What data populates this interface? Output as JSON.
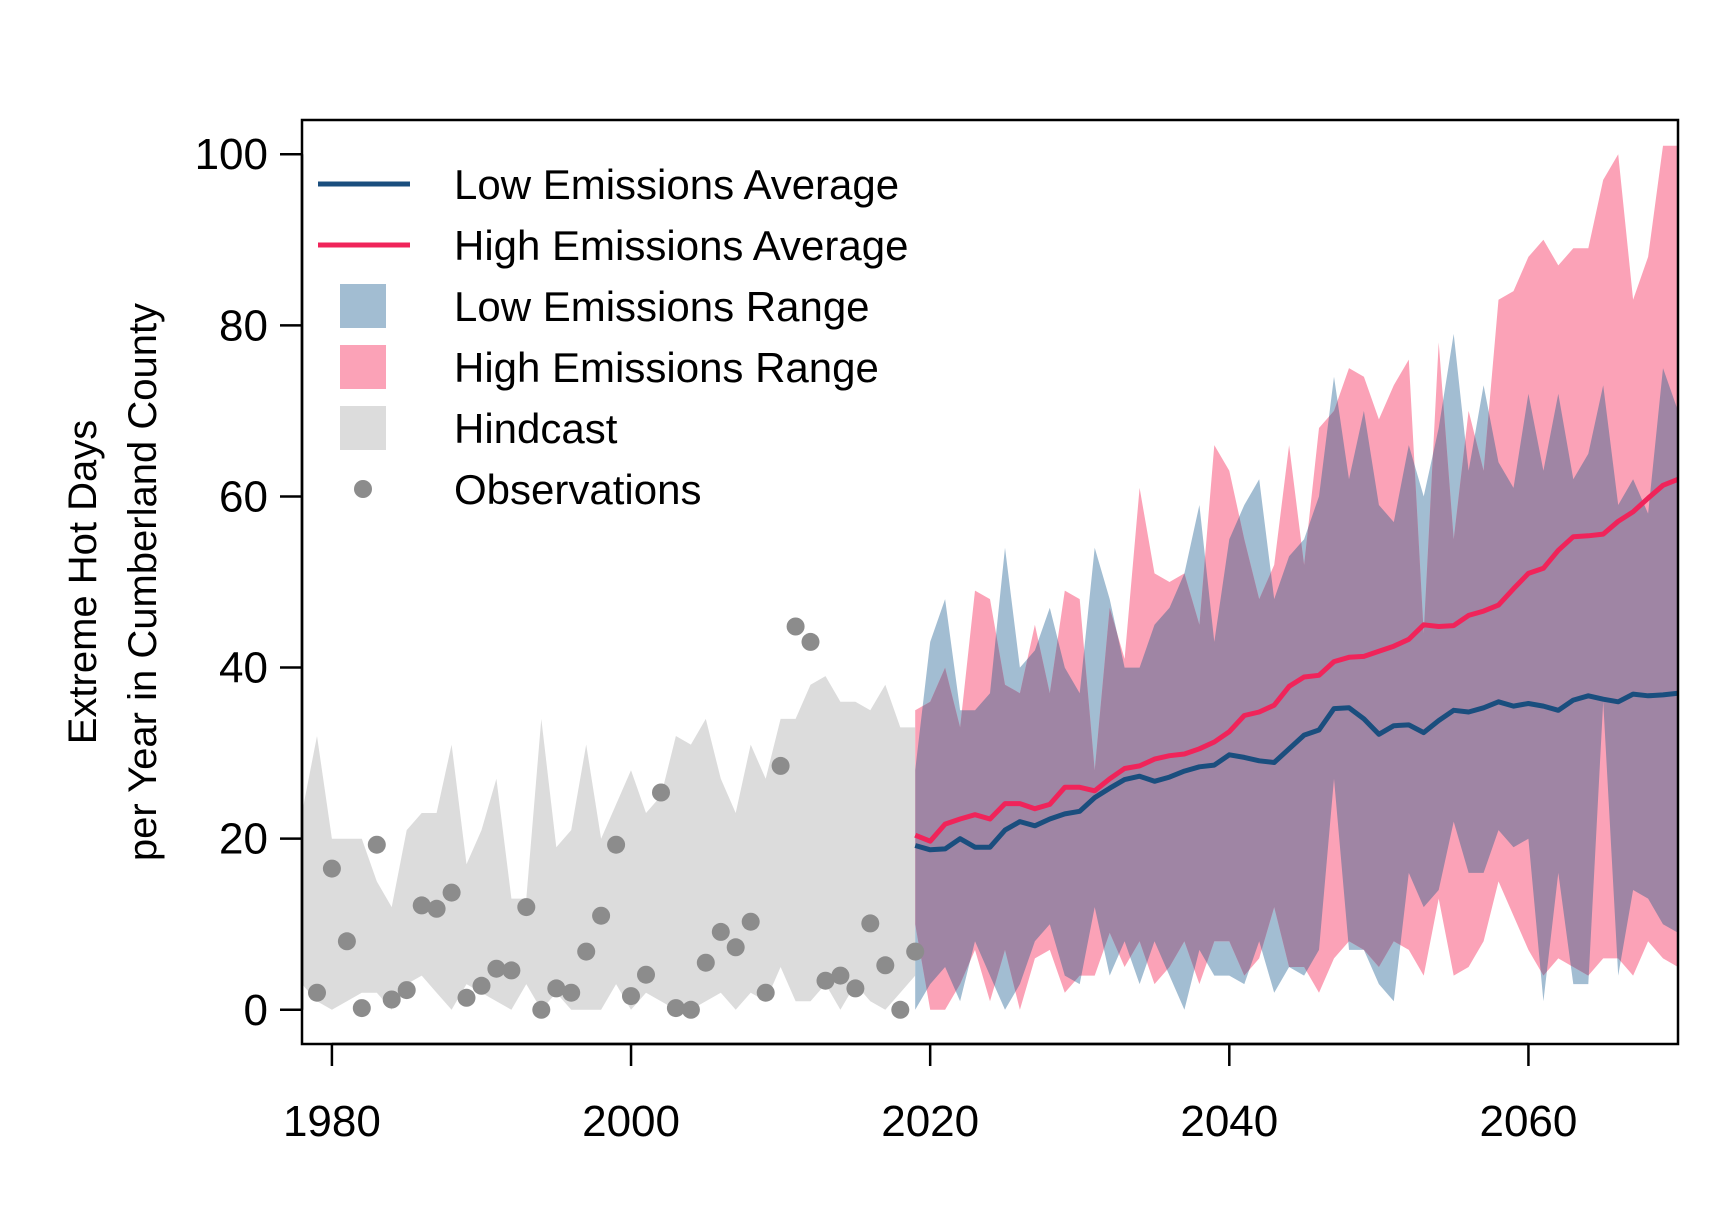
{
  "colors": {
    "low": "#1a4e7e",
    "high": "#f0245a",
    "low_range": "#a2bdd2",
    "high_range": "#fba2b7",
    "overlap": "#9f85a4",
    "hindcast": "#dcdcdc",
    "observations": "#8c8c8c"
  },
  "chart_data": {
    "type": "line",
    "xlabel": "",
    "ylabel_lines": [
      "Extreme Hot Days",
      "per Year in Cumberland County"
    ],
    "xlim": [
      1978,
      2070
    ],
    "ylim": [
      -4,
      104
    ],
    "xticks": [
      1980,
      2000,
      2020,
      2040,
      2060
    ],
    "yticks": [
      0,
      20,
      40,
      60,
      80,
      100
    ],
    "grid": false,
    "legend_position": "top-left",
    "legend": [
      {
        "label": "Low Emissions Average",
        "symbol": "line",
        "color": "#1a4e7e"
      },
      {
        "label": "High Emissions Average",
        "symbol": "line",
        "color": "#f0245a"
      },
      {
        "label": "Low Emissions Range",
        "symbol": "box",
        "color": "#a2bdd2"
      },
      {
        "label": "High Emissions Range",
        "symbol": "box",
        "color": "#fba2b7"
      },
      {
        "label": "Hindcast",
        "symbol": "box",
        "color": "#dcdcdc"
      },
      {
        "label": "Observations",
        "symbol": "point",
        "color": "#8c8c8c"
      }
    ],
    "hindcast_range": {
      "x": [
        1978,
        1979,
        1980,
        1981,
        1982,
        1983,
        1984,
        1985,
        1986,
        1987,
        1988,
        1989,
        1990,
        1991,
        1992,
        1993,
        1994,
        1995,
        1996,
        1997,
        1998,
        1999,
        2000,
        2001,
        2002,
        2003,
        2004,
        2005,
        2006,
        2007,
        2008,
        2009,
        2010,
        2011,
        2012,
        2013,
        2014,
        2015,
        2016,
        2017,
        2018,
        2019
      ],
      "upper": [
        23,
        32,
        20,
        20,
        20,
        15,
        12,
        21,
        23,
        23,
        31,
        17,
        21,
        27,
        13,
        13,
        34,
        19,
        21,
        31,
        20,
        24,
        28,
        23,
        25,
        32,
        31,
        34,
        27,
        23,
        31,
        27,
        34,
        34,
        38,
        39,
        36,
        36,
        35,
        38,
        33,
        33
      ],
      "lower": [
        3,
        1,
        0,
        1,
        2,
        2,
        0,
        3,
        4,
        2,
        0,
        3,
        2,
        1,
        0,
        3,
        0,
        2,
        0,
        0,
        0,
        3,
        0,
        2,
        1,
        0,
        0,
        1,
        2,
        0,
        2,
        1,
        5,
        1,
        1,
        3,
        0,
        3,
        1,
        0,
        2,
        4
      ]
    },
    "observations": {
      "x": [
        1979,
        1980,
        1981,
        1982,
        1983,
        1984,
        1985,
        1986,
        1987,
        1988,
        1989,
        1990,
        1991,
        1992,
        1993,
        1994,
        1995,
        1996,
        1997,
        1998,
        1999,
        2000,
        2001,
        2002,
        2003,
        2004,
        2005,
        2006,
        2007,
        2008,
        2009,
        2010,
        2011,
        2012,
        2013,
        2014,
        2015,
        2016,
        2017,
        2018,
        2019
      ],
      "y": [
        2,
        16.5,
        8,
        0.2,
        19.3,
        1.2,
        2.3,
        12.2,
        11.8,
        13.7,
        1.4,
        2.8,
        4.8,
        4.6,
        12,
        0,
        2.5,
        2,
        6.8,
        11,
        19.3,
        1.6,
        4.1,
        25.4,
        0.2,
        0,
        5.5,
        9.1,
        7.3,
        10.3,
        2,
        28.5,
        44.8,
        43,
        3.4,
        4,
        2.5,
        10.1,
        5.2,
        0,
        6.8
      ]
    },
    "low_emissions_range": {
      "x": [
        2019,
        2020,
        2021,
        2022,
        2023,
        2024,
        2025,
        2026,
        2027,
        2028,
        2029,
        2030,
        2031,
        2032,
        2033,
        2034,
        2035,
        2036,
        2037,
        2038,
        2039,
        2040,
        2041,
        2042,
        2043,
        2044,
        2045,
        2046,
        2047,
        2048,
        2049,
        2050,
        2051,
        2052,
        2053,
        2054,
        2055,
        2056,
        2057,
        2058,
        2059,
        2060,
        2061,
        2062,
        2063,
        2064,
        2065,
        2066,
        2067,
        2068,
        2069,
        2070
      ],
      "upper": [
        28,
        43,
        48,
        35,
        35,
        37,
        54,
        40,
        42,
        47,
        40,
        37,
        54,
        48,
        40,
        40,
        45,
        47,
        51,
        59,
        43,
        55,
        59,
        62,
        48,
        53,
        55,
        60,
        74,
        62,
        70,
        59,
        57,
        66,
        60,
        68,
        79,
        63,
        73,
        64,
        61,
        72,
        63,
        72,
        62,
        65,
        73,
        59,
        62,
        58,
        75,
        70
      ],
      "lower": [
        0,
        3,
        5,
        1,
        8,
        4,
        0,
        3,
        8,
        10,
        4,
        3,
        12,
        4,
        8,
        3,
        8,
        4,
        0,
        7,
        4,
        4,
        3,
        8,
        2,
        5,
        4,
        7,
        27,
        7,
        7,
        3,
        1,
        16,
        12,
        14,
        22,
        16,
        16,
        21,
        19,
        20,
        1,
        16,
        3,
        3,
        36,
        4,
        14,
        13,
        10,
        9
      ]
    },
    "high_emissions_range": {
      "x": [
        2019,
        2020,
        2021,
        2022,
        2023,
        2024,
        2025,
        2026,
        2027,
        2028,
        2029,
        2030,
        2031,
        2032,
        2033,
        2034,
        2035,
        2036,
        2037,
        2038,
        2039,
        2040,
        2041,
        2042,
        2043,
        2044,
        2045,
        2046,
        2047,
        2048,
        2049,
        2050,
        2051,
        2052,
        2053,
        2054,
        2055,
        2056,
        2057,
        2058,
        2059,
        2060,
        2061,
        2062,
        2063,
        2064,
        2065,
        2066,
        2067,
        2068,
        2069,
        2070
      ],
      "upper": [
        35,
        36,
        40,
        33,
        49,
        48,
        38,
        37,
        45,
        37,
        49,
        48,
        28,
        47,
        41,
        61,
        51,
        50,
        51,
        45,
        66,
        63,
        55,
        48,
        52,
        66,
        52,
        68,
        70,
        75,
        74,
        69,
        73,
        76,
        44,
        78,
        55,
        70,
        63,
        83,
        84,
        88,
        90,
        87,
        89,
        89,
        97,
        100,
        83,
        88,
        101,
        101
      ],
      "lower": [
        10,
        0,
        0,
        3,
        7,
        1,
        7,
        0,
        6,
        7,
        2,
        4,
        4,
        9,
        5,
        8,
        3,
        5,
        8,
        3,
        8,
        8,
        4,
        6,
        12,
        5,
        5,
        2,
        6,
        8,
        7,
        5,
        8,
        7,
        4,
        13,
        4,
        5,
        8,
        15,
        11,
        7,
        4,
        6,
        5,
        4,
        6,
        6,
        4,
        8,
        6,
        5
      ]
    },
    "series": [
      {
        "name": "Low Emissions Average",
        "color": "#1a4e7e",
        "x": [
          2019,
          2020,
          2021,
          2022,
          2023,
          2024,
          2025,
          2026,
          2027,
          2028,
          2029,
          2030,
          2031,
          2032,
          2033,
          2034,
          2035,
          2036,
          2037,
          2038,
          2039,
          2040,
          2041,
          2042,
          2043,
          2044,
          2045,
          2046,
          2047,
          2048,
          2049,
          2050,
          2051,
          2052,
          2053,
          2054,
          2055,
          2056,
          2057,
          2058,
          2059,
          2060,
          2061,
          2062,
          2063,
          2064,
          2065,
          2066,
          2067,
          2068,
          2069,
          2070
        ],
        "y": [
          19.2,
          18.7,
          18.8,
          20,
          19,
          19,
          21,
          22,
          21.5,
          22.3,
          22.9,
          23.2,
          24.8,
          25.9,
          26.9,
          27.3,
          26.7,
          27.2,
          27.9,
          28.4,
          28.6,
          29.8,
          29.5,
          29.1,
          28.9,
          30.5,
          32.1,
          32.7,
          35.2,
          35.3,
          34,
          32.2,
          33.2,
          33.3,
          32.4,
          33.8,
          35,
          34.8,
          35.3,
          36,
          35.5,
          35.8,
          35.5,
          35,
          36.2,
          36.7,
          36.3,
          36,
          36.9,
          36.7,
          36.8,
          37
        ]
      },
      {
        "name": "High Emissions Average",
        "color": "#f0245a",
        "x": [
          2019,
          2020,
          2021,
          2022,
          2023,
          2024,
          2025,
          2026,
          2027,
          2028,
          2029,
          2030,
          2031,
          2032,
          2033,
          2034,
          2035,
          2036,
          2037,
          2038,
          2039,
          2040,
          2041,
          2042,
          2043,
          2044,
          2045,
          2046,
          2047,
          2048,
          2049,
          2050,
          2051,
          2052,
          2053,
          2054,
          2055,
          2056,
          2057,
          2058,
          2059,
          2060,
          2061,
          2062,
          2063,
          2064,
          2065,
          2066,
          2067,
          2068,
          2069,
          2070
        ],
        "y": [
          20.4,
          19.7,
          21.7,
          22.3,
          22.8,
          22.3,
          24.1,
          24.1,
          23.5,
          24,
          26,
          26,
          25.6,
          27,
          28.2,
          28.5,
          29.3,
          29.7,
          29.9,
          30.5,
          31.3,
          32.5,
          34.4,
          34.8,
          35.6,
          37.8,
          38.9,
          39.1,
          40.7,
          41.2,
          41.3,
          41.9,
          42.5,
          43.3,
          45,
          44.8,
          44.9,
          46.1,
          46.6,
          47.3,
          49.2,
          51,
          51.6,
          53.7,
          55.3,
          55.4,
          55.6,
          57.1,
          58.2,
          59.8,
          61.3,
          62
        ]
      }
    ]
  }
}
